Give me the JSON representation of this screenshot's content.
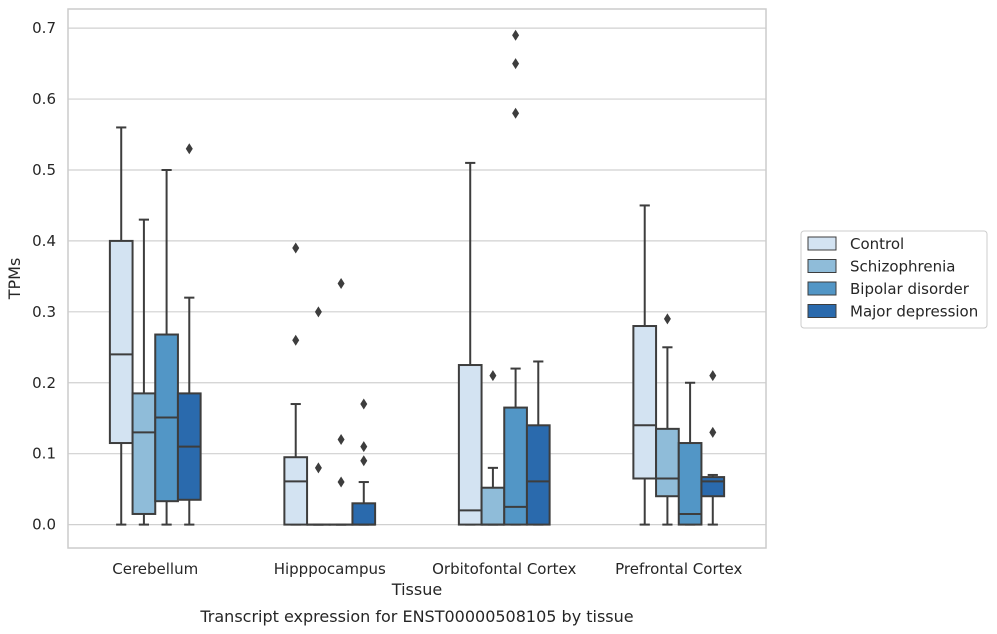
{
  "chart_data": {
    "type": "box",
    "title": "",
    "caption": "Transcript expression for ENST00000508105 by tissue",
    "xlabel": "Tissue",
    "ylabel": "TPMs",
    "ylim": [
      -0.033,
      0.727
    ],
    "yticks": [
      "0.0",
      "0.1",
      "0.2",
      "0.3",
      "0.4",
      "0.5",
      "0.6",
      "0.7"
    ],
    "ytick_values": [
      0,
      0.1,
      0.2,
      0.3,
      0.4,
      0.5,
      0.6,
      0.7
    ],
    "grid": true,
    "legend_position": "right",
    "categories": [
      "Cerebellum",
      "Hipppocampus",
      "Orbitofontal Cortex",
      "Prefrontal Cortex"
    ],
    "series": [
      {
        "name": "Control",
        "color": "#d3e3f2",
        "boxes": [
          {
            "whislo": 0,
            "q1": 0.115,
            "med": 0.24,
            "q3": 0.4,
            "whishi": 0.56,
            "fliers": []
          },
          {
            "whislo": 0,
            "q1": 0,
            "med": 0.061,
            "q3": 0.095,
            "whishi": 0.17,
            "fliers": [
              0.26,
              0.39
            ]
          },
          {
            "whislo": 0,
            "q1": 0,
            "med": 0.02,
            "q3": 0.225,
            "whishi": 0.51,
            "fliers": []
          },
          {
            "whislo": 0,
            "q1": 0.065,
            "med": 0.14,
            "q3": 0.28,
            "whishi": 0.45,
            "fliers": []
          }
        ]
      },
      {
        "name": "Schizophrenia",
        "color": "#8fbcd9",
        "boxes": [
          {
            "whislo": 0,
            "q1": 0.015,
            "med": 0.13,
            "q3": 0.185,
            "whishi": 0.43,
            "fliers": []
          },
          {
            "whislo": 0,
            "q1": 0,
            "med": 0,
            "q3": 0,
            "whishi": 0,
            "fliers": [
              0.08,
              0.3
            ]
          },
          {
            "whislo": 0,
            "q1": 0,
            "med": 0,
            "q3": 0.052,
            "whishi": 0.08,
            "fliers": [
              0.21
            ]
          },
          {
            "whislo": 0,
            "q1": 0.04,
            "med": 0.065,
            "q3": 0.135,
            "whishi": 0.25,
            "fliers": [
              0.29
            ]
          }
        ]
      },
      {
        "name": "Bipolar disorder",
        "color": "#5296c6",
        "boxes": [
          {
            "whislo": 0,
            "q1": 0.033,
            "med": 0.151,
            "q3": 0.268,
            "whishi": 0.5,
            "fliers": []
          },
          {
            "whislo": 0,
            "q1": 0,
            "med": 0,
            "q3": 0,
            "whishi": 0,
            "fliers": [
              0.06,
              0.12,
              0.34
            ]
          },
          {
            "whislo": 0,
            "q1": 0,
            "med": 0.025,
            "q3": 0.165,
            "whishi": 0.22,
            "fliers": [
              0.58,
              0.65,
              0.69
            ]
          },
          {
            "whislo": 0,
            "q1": 0,
            "med": 0.015,
            "q3": 0.115,
            "whishi": 0.2,
            "fliers": []
          }
        ]
      },
      {
        "name": "Major depression",
        "color": "#2a6aad",
        "boxes": [
          {
            "whislo": 0,
            "q1": 0.035,
            "med": 0.11,
            "q3": 0.185,
            "whishi": 0.32,
            "fliers": [
              0.53
            ]
          },
          {
            "whislo": 0,
            "q1": 0,
            "med": 0,
            "q3": 0.03,
            "whishi": 0.06,
            "fliers": [
              0.09,
              0.11,
              0.17
            ]
          },
          {
            "whislo": 0,
            "q1": 0,
            "med": 0.061,
            "q3": 0.14,
            "whishi": 0.23,
            "fliers": []
          },
          {
            "whislo": 0,
            "q1": 0.04,
            "med": 0.061,
            "q3": 0.067,
            "whishi": 0.07,
            "fliers": [
              0.13,
              0.21
            ]
          }
        ]
      }
    ]
  }
}
